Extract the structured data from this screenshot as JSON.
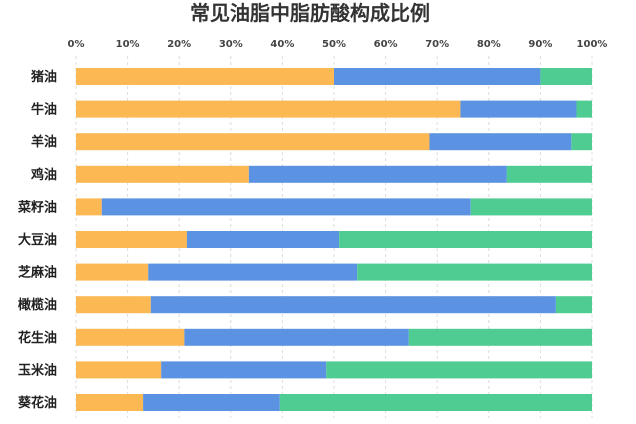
{
  "chart_data": {
    "type": "bar",
    "orientation": "horizontal",
    "stacked": true,
    "title": "常见油脂中脂肪酸构成比例",
    "categories": [
      "猪油",
      "牛油",
      "羊油",
      "鸡油",
      "菜籽油",
      "大豆油",
      "芝麻油",
      "橄榄油",
      "花生油",
      "玉米油",
      "葵花油"
    ],
    "series": [
      {
        "color": "#fcb852",
        "values": [
          50,
          74.5,
          68.5,
          33.5,
          5,
          21.5,
          14,
          14.5,
          21,
          16.5,
          13
        ]
      },
      {
        "color": "#5b93e2",
        "values": [
          40,
          22.5,
          27.5,
          50,
          71.5,
          29.5,
          40.5,
          78.5,
          43.5,
          32,
          26.5
        ]
      },
      {
        "color": "#4fcc92",
        "values": [
          10,
          3,
          4,
          16.5,
          23.5,
          49,
          45.5,
          7,
          35.5,
          51.5,
          60.5
        ]
      }
    ],
    "xticks": [
      "0%",
      "10%",
      "20%",
      "30%",
      "40%",
      "50%",
      "60%",
      "70%",
      "80%",
      "90%",
      "100%"
    ],
    "xlim": [
      0,
      100
    ],
    "grid": true,
    "legend": false
  }
}
